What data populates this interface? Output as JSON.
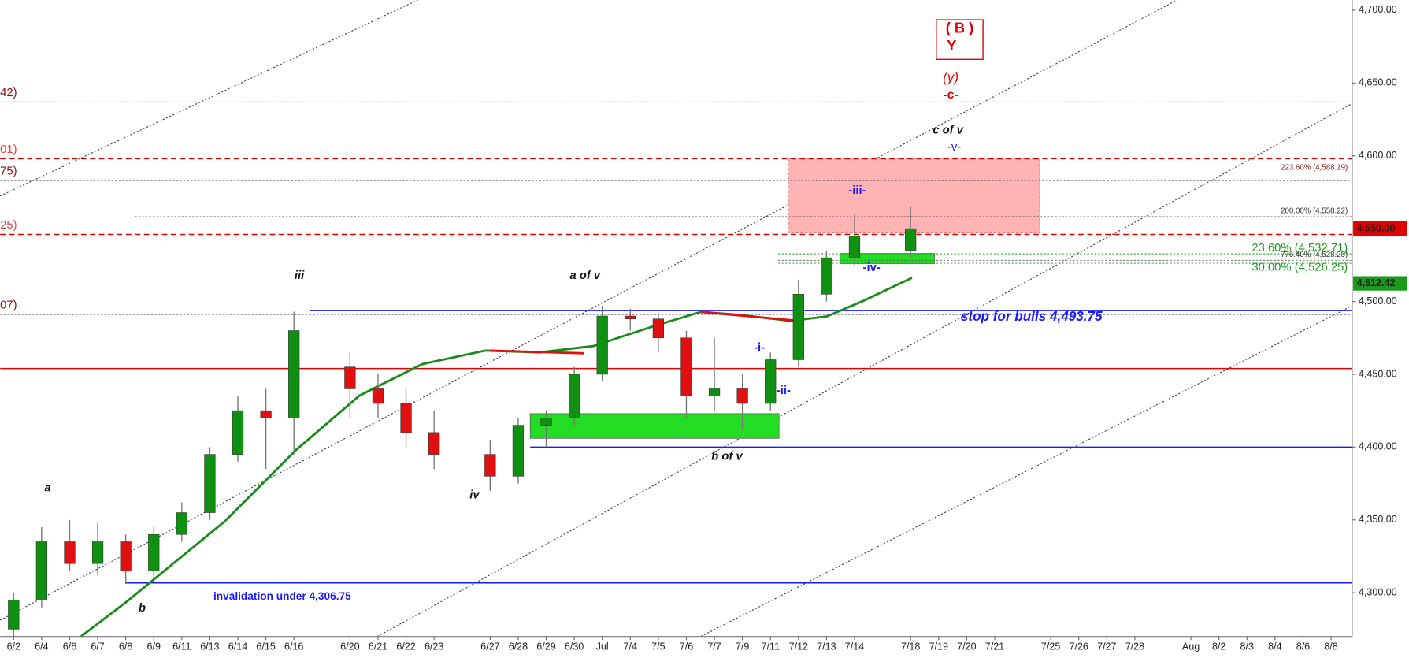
{
  "chart_data": {
    "type": "candlestick",
    "categories": [
      "6/2",
      "6/4",
      "6/6",
      "6/7",
      "6/8",
      "6/9",
      "6/11",
      "6/13",
      "6/14",
      "6/15",
      "6/16",
      null,
      "6/20",
      "6/21",
      "6/22",
      "6/23",
      null,
      "6/27",
      "6/28",
      "6/29",
      "6/30",
      "Jul",
      "7/4",
      "7/5",
      "7/6",
      "7/7",
      "7/9",
      "7/11",
      "7/12",
      "7/13",
      "7/14",
      null,
      "7/18",
      "7/19",
      "7/20",
      "7/21",
      null,
      "7/25",
      "7/26",
      "7/27",
      "7/28",
      null,
      "Aug",
      "8/2",
      "8/3",
      "8/4",
      "8/6",
      "8/8"
    ],
    "open": [
      4275,
      4295,
      4335,
      4320,
      4335,
      4315,
      4340,
      4355,
      4395,
      4425,
      4420,
      null,
      4455,
      4440,
      4430,
      4410,
      null,
      4395,
      4380,
      4415,
      4420,
      4450,
      4490,
      4488,
      4475,
      4435,
      4440,
      4430,
      4460,
      4505,
      4530,
      null,
      4535,
      null,
      null,
      null,
      null,
      null,
      null,
      null,
      null,
      null,
      null,
      null,
      null,
      null,
      null,
      null
    ],
    "high": [
      4300,
      4345,
      4350,
      4348,
      4340,
      4345,
      4362,
      4400,
      4435,
      4440,
      4493,
      null,
      4465,
      4450,
      4440,
      4425,
      null,
      4405,
      4420,
      4425,
      4455,
      4497,
      4495,
      4492,
      4480,
      4475,
      4450,
      4465,
      4515,
      4535,
      4560,
      null,
      4565,
      null,
      null,
      null,
      null,
      null,
      null,
      null,
      null,
      null,
      null,
      null,
      null,
      null,
      null,
      null
    ],
    "low": [
      4268,
      4290,
      4315,
      4312,
      4306,
      4310,
      4335,
      4350,
      4390,
      4385,
      4395,
      null,
      4420,
      4420,
      4400,
      4385,
      null,
      4370,
      4375,
      4400,
      4415,
      4445,
      4480,
      4465,
      4420,
      4425,
      4412,
      4425,
      4455,
      4500,
      4525,
      null,
      4530,
      null,
      null,
      null,
      null,
      null,
      null,
      null,
      null,
      null,
      null,
      null,
      null,
      null,
      null,
      null
    ],
    "close": [
      4295,
      4335,
      4320,
      4335,
      4315,
      4340,
      4355,
      4395,
      4425,
      4420,
      4480,
      null,
      4440,
      4430,
      4410,
      4395,
      null,
      4380,
      4415,
      4420,
      4450,
      4490,
      4488,
      4475,
      4435,
      4440,
      4430,
      4460,
      4505,
      4530,
      4545,
      null,
      4550,
      null,
      null,
      null,
      null,
      null,
      null,
      null,
      null,
      null,
      null,
      null,
      null,
      null,
      null,
      null
    ],
    "up_color": "#109010",
    "down_color": "#e01010",
    "ylim": [
      4270,
      4707
    ],
    "yticks": [
      {
        "value": 4300,
        "label": "4,300.00"
      },
      {
        "value": 4350,
        "label": "4,350.00"
      },
      {
        "value": 4400,
        "label": "4,400.00"
      },
      {
        "value": 4450,
        "label": "4,450.00"
      },
      {
        "value": 4500,
        "label": "4,500.00"
      },
      {
        "value": 4600,
        "label": "4,600.00"
      },
      {
        "value": 4650,
        "label": "4,650.00"
      },
      {
        "value": 4700,
        "label": "4,700.00"
      }
    ],
    "price_markers": [
      {
        "value": 4550,
        "label": "4,550.00",
        "color": "#e00000"
      },
      {
        "value": 4512.42,
        "label": "4,512.42",
        "color": "#1a9a1a"
      }
    ],
    "levels": [
      {
        "value": 4637,
        "color": "#555555",
        "style": "dotted",
        "label": "42)",
        "label_color": "#8b1010"
      },
      {
        "value": 4598,
        "color": "#e00000",
        "style": "dashed",
        "label": "01)",
        "label_color": "#e04040"
      },
      {
        "value": 4588.19,
        "color": "#555555",
        "style": "dotted",
        "right_label": "223.60% (4,588.19)",
        "label_color": "#8b1010"
      },
      {
        "value": 4583,
        "color": "#555555",
        "style": "dotted",
        "label": "75)",
        "label_color": "#8b1010"
      },
      {
        "value": 4558.22,
        "color": "#555555",
        "style": "dotted",
        "right_label": "200.00% (4,558.22)",
        "label_color": "#333333"
      },
      {
        "value": 4546,
        "color": "#e00000",
        "style": "dashed",
        "label": "25)",
        "label_color": "#e04040"
      },
      {
        "value": 4532.71,
        "color": "#1a9a1a",
        "style": "dotted",
        "right_label": "23.60% (4,532.71)",
        "label_color": "#1a9a1a"
      },
      {
        "value": 4528.25,
        "color": "#555555",
        "style": "dotted",
        "right_label": "776.40% (4,528.25)",
        "label_color": "#333333"
      },
      {
        "value": 4526.25,
        "color": "#1a9a1a",
        "style": "dotted",
        "right_label": "30.00% (4,526.25)",
        "label_color": "#1a9a1a"
      },
      {
        "value": 4491,
        "color": "#555555",
        "style": "dotted",
        "label": "07)",
        "label_color": "#8b1010"
      },
      {
        "value": 4493.75,
        "color": "#1a1aff",
        "style": "solid"
      },
      {
        "value": 4454,
        "color": "#e00000",
        "style": "solid"
      },
      {
        "value": 4400,
        "color": "#1a1aff",
        "style": "solid"
      },
      {
        "value": 4306.75,
        "color": "#1a1aff",
        "style": "solid"
      }
    ],
    "zones": [
      {
        "from": 4547,
        "to": 4598,
        "color": "#ffb3b3"
      },
      {
        "from": 4406,
        "to": 4423,
        "color": "#22dd22"
      },
      {
        "from": 4526,
        "to": 4533,
        "color": "#22dd22"
      }
    ],
    "annotations": [
      "( B )",
      "Y",
      "(y)",
      "-c-",
      "c of v",
      "-v-",
      "-iii-",
      "-iv-",
      "iii",
      "a of v",
      "stop for bulls 4,493.75",
      "-i-",
      "-ii-",
      "b of v",
      "iv",
      "a",
      "b",
      "invalidation under 4,306.75"
    ]
  }
}
